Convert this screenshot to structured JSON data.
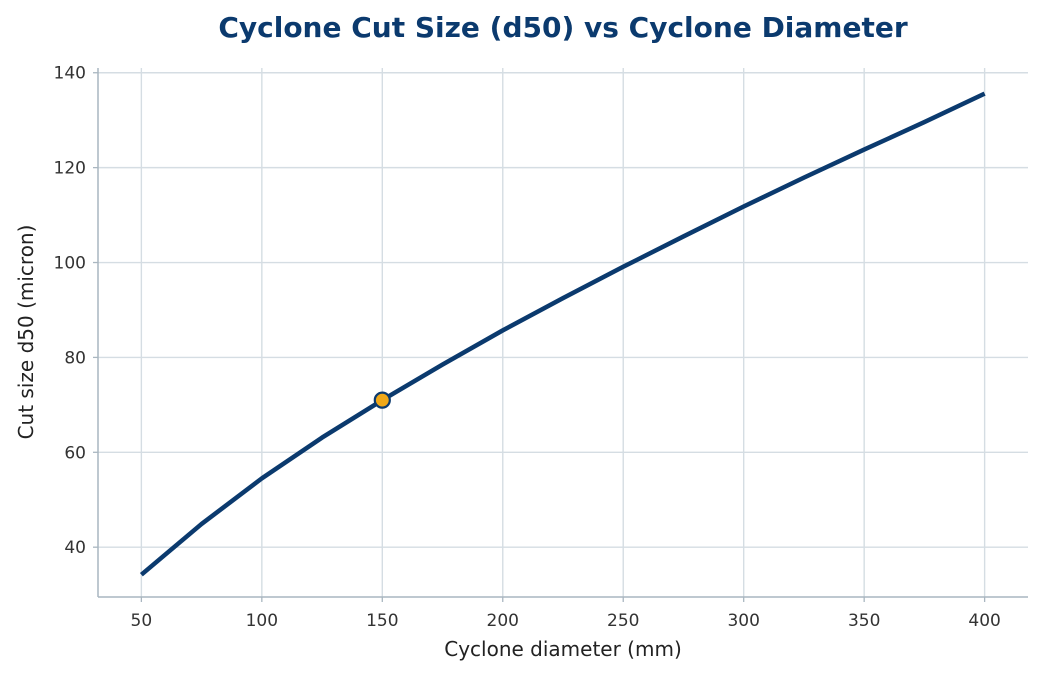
{
  "chart_data": {
    "type": "line",
    "title": "Cyclone Cut Size (d50) vs Cyclone Diameter",
    "xlabel": "Cyclone diameter (mm)",
    "ylabel": "Cut size d50 (micron)",
    "xlim": [
      32,
      418
    ],
    "ylim": [
      29.5,
      141
    ],
    "xticks": [
      50,
      100,
      150,
      200,
      250,
      300,
      350,
      400
    ],
    "yticks": [
      40,
      60,
      80,
      100,
      120,
      140
    ],
    "grid": true,
    "series": [
      {
        "color": "#0b3a6e",
        "x": [
          50,
          75,
          100,
          125,
          150,
          175,
          200,
          225,
          250,
          275,
          300,
          325,
          350,
          375,
          400
        ],
        "y": [
          34.2,
          44.9,
          54.5,
          63.1,
          71.0,
          78.5,
          85.7,
          92.5,
          99.1,
          105.5,
          111.8,
          117.9,
          123.8,
          129.6,
          135.6
        ]
      }
    ],
    "highlight_point": {
      "x": 150,
      "y": 71.0,
      "fill": "#f0a818",
      "stroke": "#0b3a6e"
    }
  }
}
